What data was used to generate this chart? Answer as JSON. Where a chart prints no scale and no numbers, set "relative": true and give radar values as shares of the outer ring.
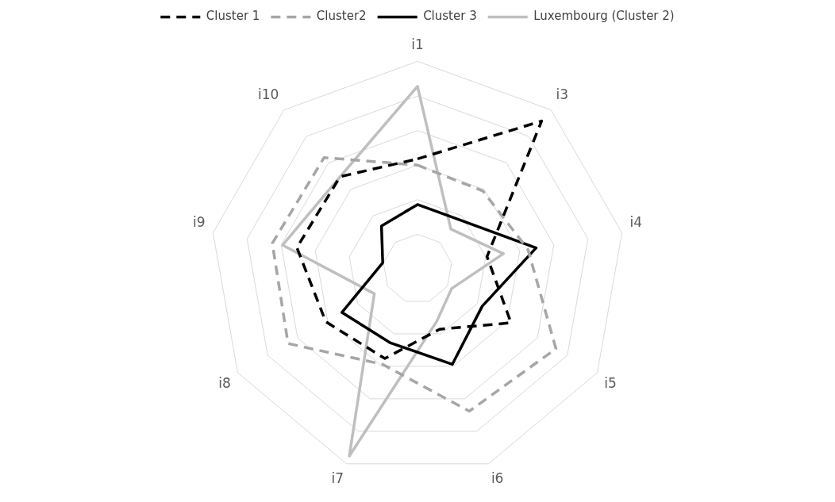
{
  "chart_data": {
    "type": "radar",
    "relative": true,
    "legend": "top",
    "marker": "none",
    "grid": true,
    "categories": [
      "i1",
      "i3",
      "i4",
      "i5",
      "i6",
      "i7",
      "i8",
      "i9",
      "i10"
    ],
    "series": [
      {
        "name": "Cluster 1",
        "color": "#000000",
        "line_style": "dashed",
        "values": [
          0.53,
          0.93,
          0.34,
          0.52,
          0.31,
          0.46,
          0.51,
          0.59,
          0.58
        ]
      },
      {
        "name": "Cluster2",
        "color": "#a6a6a6",
        "line_style": "dashed",
        "values": [
          0.5,
          0.49,
          0.54,
          0.77,
          0.73,
          0.49,
          0.72,
          0.71,
          0.7
        ]
      },
      {
        "name": "Cluster 3",
        "color": "#000000",
        "line_style": "solid",
        "values": [
          0.31,
          0.31,
          0.58,
          0.36,
          0.49,
          0.38,
          0.42,
          0.17,
          0.27
        ]
      },
      {
        "name": "Luxembourg (Cluster 2)",
        "color": "#bfbfbf",
        "line_style": "solid",
        "values": [
          0.88,
          0.25,
          0.42,
          0.19,
          0.27,
          0.96,
          0.24,
          0.66,
          0.58
        ]
      }
    ]
  }
}
